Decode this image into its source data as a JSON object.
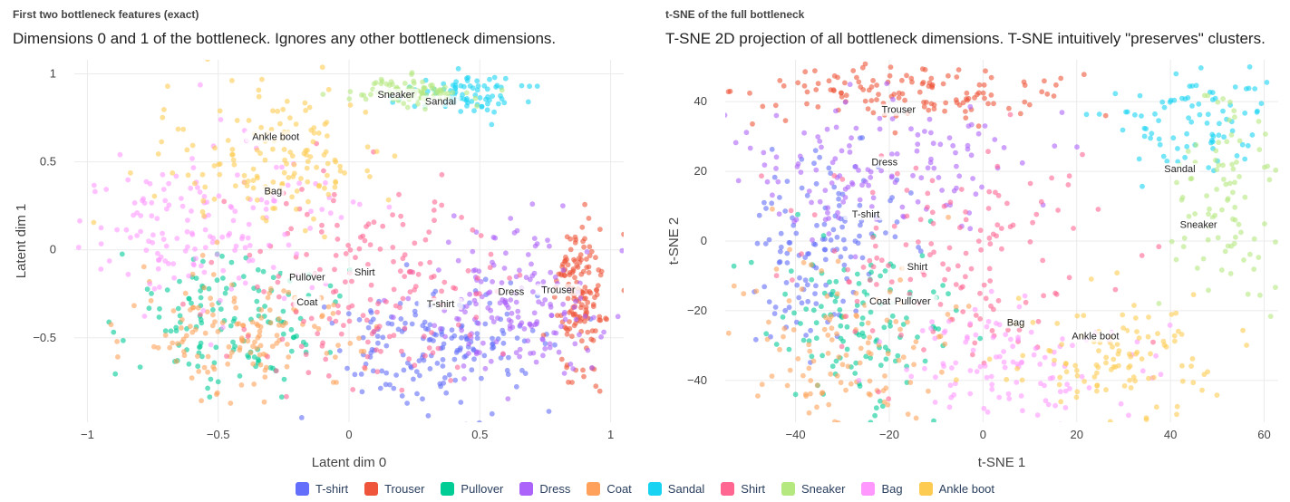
{
  "panels": [
    {
      "heading": "First two bottleneck features (exact)",
      "subtitle": "Dimensions 0 and 1 of the bottleneck. Ignores any other bottleneck dimensions."
    },
    {
      "heading": "t-SNE of the full bottleneck",
      "subtitle": "T-SNE 2D projection of all bottleneck dimensions. T-SNE intuitively \"preserves\" clusters."
    }
  ],
  "legend": [
    {
      "name": "T-shirt",
      "color": "#636efa"
    },
    {
      "name": "Trouser",
      "color": "#ef553b"
    },
    {
      "name": "Pullover",
      "color": "#00cc96"
    },
    {
      "name": "Dress",
      "color": "#ab63fa"
    },
    {
      "name": "Coat",
      "color": "#ffa15a"
    },
    {
      "name": "Sandal",
      "color": "#19d3f3"
    },
    {
      "name": "Shirt",
      "color": "#ff6692"
    },
    {
      "name": "Sneaker",
      "color": "#b6e880"
    },
    {
      "name": "Bag",
      "color": "#ff97ff"
    },
    {
      "name": "Ankle boot",
      "color": "#fecb52"
    }
  ],
  "chart_data": [
    {
      "type": "scatter",
      "title": "First two bottleneck features (exact)",
      "subtitle": "Dimensions 0 and 1 of the bottleneck. Ignores any other bottleneck dimensions.",
      "xlabel": "Latent dim 0",
      "ylabel": "Latent dim 1",
      "xlim": [
        -1.05,
        1.05
      ],
      "ylim": [
        -0.98,
        1.08
      ],
      "xticks": [
        -1,
        -0.5,
        0,
        0.5,
        1
      ],
      "xtick_labels": [
        "−1",
        "−0.5",
        "0",
        "0.5",
        "1"
      ],
      "yticks": [
        -0.5,
        0,
        0.5,
        1
      ],
      "ytick_labels": [
        "−0.5",
        "0",
        "0.5",
        "1"
      ],
      "grid": true,
      "clusters": [
        {
          "name": "T-shirt",
          "center": [
            0.33,
            -0.55
          ],
          "spread": [
            0.2,
            0.18
          ],
          "n": 170,
          "label_pos": [
            0.35,
            -0.32
          ]
        },
        {
          "name": "Trouser",
          "center": [
            0.88,
            -0.25
          ],
          "spread": [
            0.05,
            0.2
          ],
          "n": 150,
          "label_pos": [
            0.8,
            -0.24
          ]
        },
        {
          "name": "Pullover",
          "center": [
            -0.45,
            -0.4
          ],
          "spread": [
            0.2,
            0.18
          ],
          "n": 130,
          "label_pos": [
            -0.16,
            -0.17
          ]
        },
        {
          "name": "Dress",
          "center": [
            0.62,
            -0.3
          ],
          "spread": [
            0.17,
            0.22
          ],
          "n": 170,
          "label_pos": [
            0.62,
            -0.25
          ]
        },
        {
          "name": "Coat",
          "center": [
            -0.42,
            -0.48
          ],
          "spread": [
            0.2,
            0.16
          ],
          "n": 140,
          "label_pos": [
            -0.16,
            -0.31
          ]
        },
        {
          "name": "Sandal",
          "center": [
            0.45,
            0.88
          ],
          "spread": [
            0.12,
            0.06
          ],
          "n": 80,
          "label_pos": [
            0.35,
            0.83
          ]
        },
        {
          "name": "Shirt",
          "center": [
            0.1,
            -0.2
          ],
          "spread": [
            0.28,
            0.28
          ],
          "n": 170,
          "label_pos": [
            0.06,
            -0.14
          ]
        },
        {
          "name": "Sneaker",
          "center": [
            0.25,
            0.9
          ],
          "spread": [
            0.12,
            0.04
          ],
          "n": 90,
          "label_pos": [
            0.18,
            0.87
          ]
        },
        {
          "name": "Bag",
          "center": [
            -0.55,
            0.15
          ],
          "spread": [
            0.25,
            0.25
          ],
          "n": 160,
          "label_pos": [
            -0.29,
            0.32
          ]
        },
        {
          "name": "Ankle boot",
          "center": [
            -0.3,
            0.55
          ],
          "spread": [
            0.2,
            0.2
          ],
          "n": 150,
          "label_pos": [
            -0.28,
            0.63
          ]
        }
      ]
    },
    {
      "type": "scatter",
      "title": "t-SNE of the full bottleneck",
      "subtitle": "T-SNE 2D projection of all bottleneck dimensions. T-SNE intuitively \"preserves\" clusters.",
      "xlabel": "t-SNE 1",
      "ylabel": "t-SNE 2",
      "xlim": [
        -55,
        63
      ],
      "ylim": [
        -52,
        52
      ],
      "xticks": [
        -40,
        -20,
        0,
        20,
        40,
        60
      ],
      "xtick_labels": [
        "−40",
        "−20",
        "0",
        "20",
        "40",
        "60"
      ],
      "yticks": [
        -40,
        -20,
        0,
        20,
        40
      ],
      "ytick_labels": [
        "−40",
        "−20",
        "0",
        "20",
        "40"
      ],
      "grid": true,
      "clusters": [
        {
          "name": "T-shirt",
          "center": [
            -35,
            0
          ],
          "spread": [
            8,
            14
          ],
          "n": 130,
          "label_pos": [
            -25,
            7
          ]
        },
        {
          "name": "Trouser",
          "center": [
            -15,
            42
          ],
          "spread": [
            18,
            5
          ],
          "n": 130,
          "label_pos": [
            -18,
            37
          ]
        },
        {
          "name": "Pullover",
          "center": [
            -25,
            -25
          ],
          "spread": [
            10,
            10
          ],
          "n": 120,
          "label_pos": [
            -15,
            -18
          ]
        },
        {
          "name": "Dress",
          "center": [
            -20,
            22
          ],
          "spread": [
            16,
            10
          ],
          "n": 140,
          "label_pos": [
            -21,
            22
          ]
        },
        {
          "name": "Coat",
          "center": [
            -30,
            -30
          ],
          "spread": [
            12,
            12
          ],
          "n": 120,
          "label_pos": [
            -22,
            -18
          ]
        },
        {
          "name": "Sandal",
          "center": [
            45,
            35
          ],
          "spread": [
            8,
            8
          ],
          "n": 90,
          "label_pos": [
            42,
            20
          ]
        },
        {
          "name": "Shirt",
          "center": [
            -5,
            -5
          ],
          "spread": [
            16,
            14
          ],
          "n": 140,
          "label_pos": [
            -14,
            -8
          ]
        },
        {
          "name": "Sneaker",
          "center": [
            52,
            12
          ],
          "spread": [
            6,
            14
          ],
          "n": 90,
          "label_pos": [
            46,
            4
          ]
        },
        {
          "name": "Bag",
          "center": [
            5,
            -35
          ],
          "spread": [
            14,
            8
          ],
          "n": 110,
          "label_pos": [
            7,
            -24
          ]
        },
        {
          "name": "Ankle boot",
          "center": [
            28,
            -32
          ],
          "spread": [
            12,
            8
          ],
          "n": 110,
          "label_pos": [
            24,
            -28
          ]
        }
      ]
    }
  ]
}
